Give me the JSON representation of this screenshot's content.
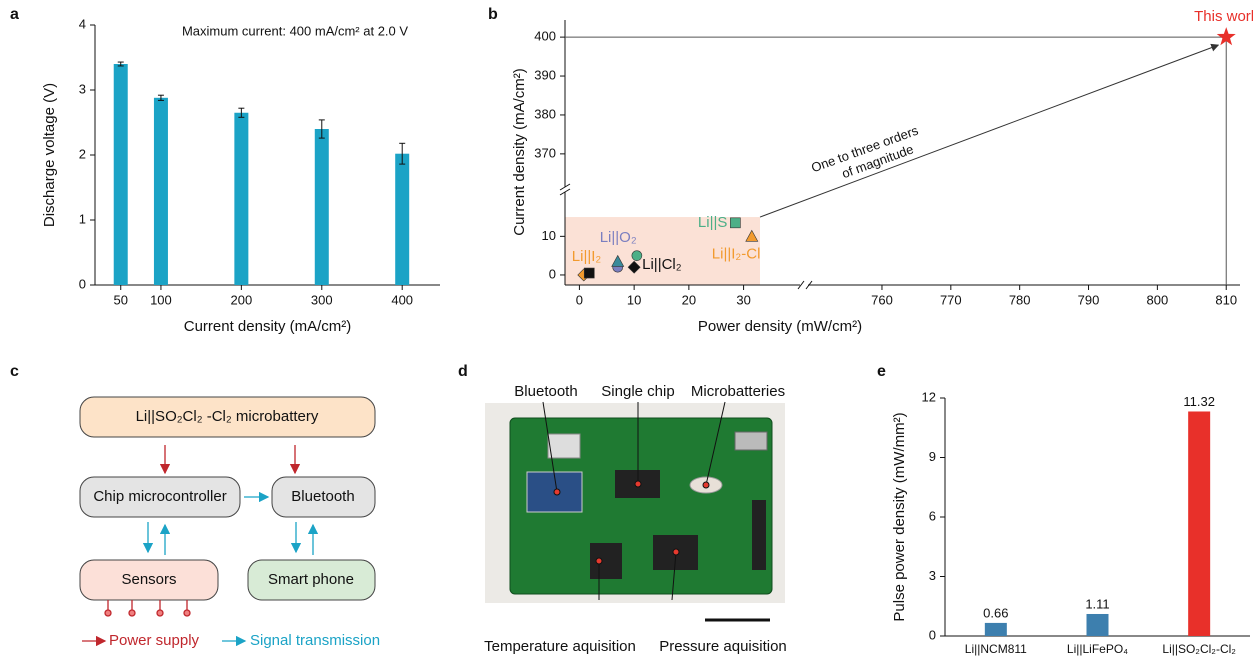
{
  "chart_data": [
    {
      "panel": "a",
      "type": "bar",
      "annotation": "Maximum current: 400 mA/cm² at 2.0 V",
      "x_label": "Current density (mA/cm²)",
      "y_label": "Discharge voltage (V)",
      "x": [
        50,
        100,
        200,
        300,
        400
      ],
      "values": [
        3.4,
        2.88,
        2.65,
        2.4,
        2.02
      ],
      "errors": [
        0.03,
        0.04,
        0.07,
        0.14,
        0.16
      ],
      "color": "#1ba3c6",
      "xlim": [
        18,
        447
      ],
      "xticks": [
        50,
        100,
        200,
        300,
        400
      ],
      "ylim": [
        0,
        4
      ],
      "yticks": [
        0,
        1,
        2,
        3,
        4
      ]
    },
    {
      "panel": "b",
      "type": "scatter",
      "x_label": "Power density (mW/cm²)",
      "y_label": "Current density (mA/cm²)",
      "annotation": [
        "One to three orders",
        "of magnitude"
      ],
      "x_segments": [
        {
          "lim": [
            -3,
            33
          ],
          "ticks": [
            0,
            10,
            20,
            30
          ]
        },
        {
          "lim": [
            751,
            812
          ],
          "ticks": [
            760,
            770,
            780,
            790,
            800,
            810
          ]
        }
      ],
      "y_segments": [
        {
          "lim": [
            -2.6,
            22
          ],
          "ticks": [
            0,
            10
          ]
        },
        {
          "lim": [
            362,
            404.4
          ],
          "ticks": [
            370,
            380,
            390,
            400
          ]
        }
      ],
      "series": [
        {
          "name": "Li||I₂",
          "color": "#f29a2e",
          "marker": "diamond",
          "x": [
            0.8
          ],
          "y": [
            0
          ]
        },
        {
          "name": "Li||O₂",
          "color": "#7b7fc0",
          "marker": "circle",
          "x": [
            7
          ],
          "y": [
            2
          ]
        },
        {
          "color": "#3a8a9a",
          "marker": "triangle",
          "x": [
            7
          ],
          "y": [
            3.5
          ]
        },
        {
          "name": "Li||Cl₂",
          "color": "#111111",
          "marker": "diamond",
          "x": [
            10
          ],
          "y": [
            2
          ]
        },
        {
          "color": "#4caf87",
          "marker": "circle",
          "x": [
            10.5
          ],
          "y": [
            5
          ]
        },
        {
          "color": "#111111",
          "marker": "square",
          "x": [
            1.8
          ],
          "y": [
            0.5
          ]
        },
        {
          "name": "Li||S",
          "color": "#4caf87",
          "marker": "square",
          "x": [
            28.5
          ],
          "y": [
            13.5
          ]
        },
        {
          "name": "Li||I₂-Cl",
          "color": "#f29a2e",
          "marker": "triangle",
          "x": [
            31.5
          ],
          "y": [
            10
          ]
        },
        {
          "name": "This work",
          "color": "#e8302a",
          "marker": "star",
          "x": [
            810
          ],
          "y": [
            400
          ]
        }
      ]
    },
    {
      "panel": "e",
      "type": "bar",
      "y_label": "Pulse power density (mW/mm²)",
      "categories": [
        "Li||NCM811",
        "Li||LiFePO₄",
        "Li||SO₂Cl₂-Cl₂"
      ],
      "values": [
        0.66,
        1.11,
        11.32
      ],
      "colors": [
        "#3d7fae",
        "#3d7fae",
        "#e8302a"
      ],
      "ylim": [
        0,
        12
      ],
      "yticks": [
        0,
        3,
        6,
        9,
        12
      ]
    }
  ],
  "diagram": {
    "panel": "c",
    "nodes": [
      "Li||SO₂Cl₂ -Cl₂ microbattery",
      "Chip microcontroller",
      "Bluetooth",
      "Sensors",
      "Smart phone"
    ],
    "legend": [
      "Power supply",
      "Signal transmission"
    ]
  },
  "photo": {
    "panel": "d",
    "labels": [
      "Bluetooth",
      "Single chip",
      "Microbatteries",
      "Temperature aquisition",
      "Pressure aquisition"
    ]
  }
}
